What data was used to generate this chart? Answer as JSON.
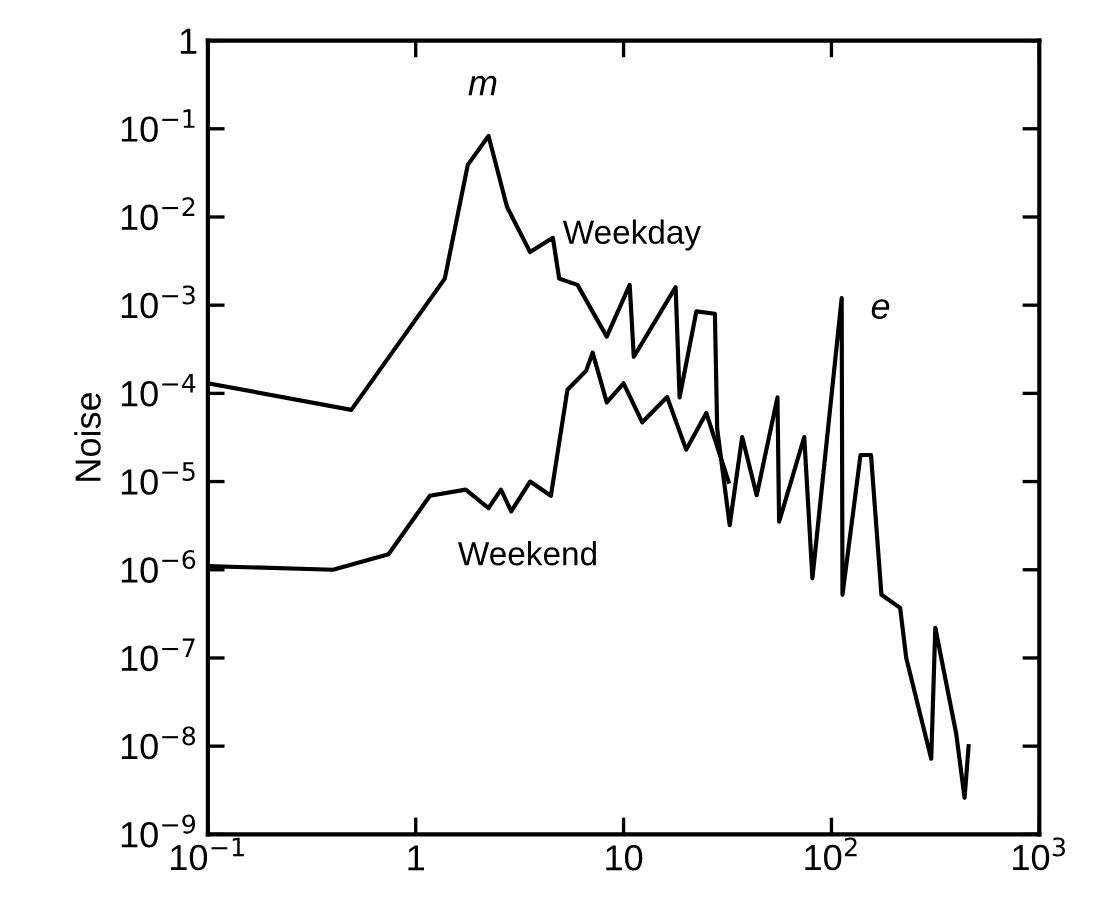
{
  "chart_data": {
    "type": "line",
    "ylabel": "Noise",
    "log": "xy",
    "xlim": [
      0.1,
      1000
    ],
    "xticks": [
      {
        "value": 0.1,
        "label": "10$^{−1}$"
      },
      1,
      10,
      {
        "value": 100,
        "label": "10$^{2}$"
      },
      {
        "value": 1000,
        "label": "10$^{3}$"
      }
    ],
    "ylim": [
      1e-09,
      1
    ],
    "yticks": [
      1,
      {
        "value": 0.1,
        "label": "10$^{−1}$"
      },
      {
        "value": 0.01,
        "label": "10$^{−2}$"
      },
      {
        "value": 0.001,
        "label": "10$^{−3}$"
      },
      {
        "value": 0.0001,
        "label": "10$^{−4}$"
      },
      {
        "value": 1e-05,
        "label": "10$^{−5}$"
      },
      {
        "value": 1e-06,
        "label": "10$^{−6}$"
      },
      {
        "value": 1e-07,
        "label": "10$^{−7}$"
      },
      {
        "value": 1e-08,
        "label": "10$^{−8}$"
      },
      {
        "value": 1e-09,
        "label": "10$^{−9}$"
      }
    ],
    "grid": false,
    "legend": false,
    "marker": "none",
    "line_style": "solid",
    "series": [
      {
        "name": "Weekday",
        "color": "#000000",
        "x": [
          0.1,
          0.49,
          1.38,
          1.78,
          2.24,
          2.75,
          3.55,
          4.57,
          4.9,
          6.0,
          8.3,
          10.7,
          11.2,
          17.8,
          18.6,
          22.4,
          27.5,
          28.2,
          32.4,
          37.2,
          43.7,
          55,
          56,
          74,
          81,
          112,
          113,
          138,
          155,
          174,
          214,
          229,
          302,
          316,
          398,
          437,
          457
        ],
        "values": [
          0.00013,
          6.5e-05,
          0.002,
          0.039,
          0.083,
          0.013,
          0.004,
          0.0058,
          0.002,
          0.0017,
          0.00044,
          0.0017,
          0.00026,
          0.0016,
          9e-05,
          0.00085,
          0.0008,
          4e-05,
          3.2e-06,
          3.2e-05,
          7e-06,
          9e-05,
          3.5e-06,
          3.2e-05,
          8e-07,
          0.0012,
          5.2e-07,
          2e-05,
          2e-05,
          5.2e-07,
          3.7e-07,
          1e-07,
          7.2e-09,
          2.2e-07,
          1.4e-08,
          2.6e-09,
          1e-08
        ]
      },
      {
        "name": "Weekend",
        "color": "#000000",
        "x": [
          0.1,
          0.4,
          0.74,
          1.17,
          1.74,
          2.24,
          2.57,
          2.88,
          3.55,
          4.47,
          5.37,
          6.6,
          7.1,
          8.3,
          10,
          12.3,
          16.2,
          20,
          25,
          32
        ],
        "values": [
          1.1e-06,
          1e-06,
          1.5e-06,
          6.9e-06,
          8.1e-06,
          5e-06,
          8.1e-06,
          4.6e-06,
          1e-05,
          6.9e-06,
          0.00011,
          0.00018,
          0.00029,
          7.9e-05,
          0.00013,
          4.7e-05,
          9.1e-05,
          2.3e-05,
          6e-05,
          1e-05
        ]
      }
    ],
    "annotations": [
      {
        "text": "m",
        "x": 2.24,
        "y": 0.083
      },
      {
        "text": "e",
        "x": 112,
        "y": 0.0012
      }
    ]
  }
}
